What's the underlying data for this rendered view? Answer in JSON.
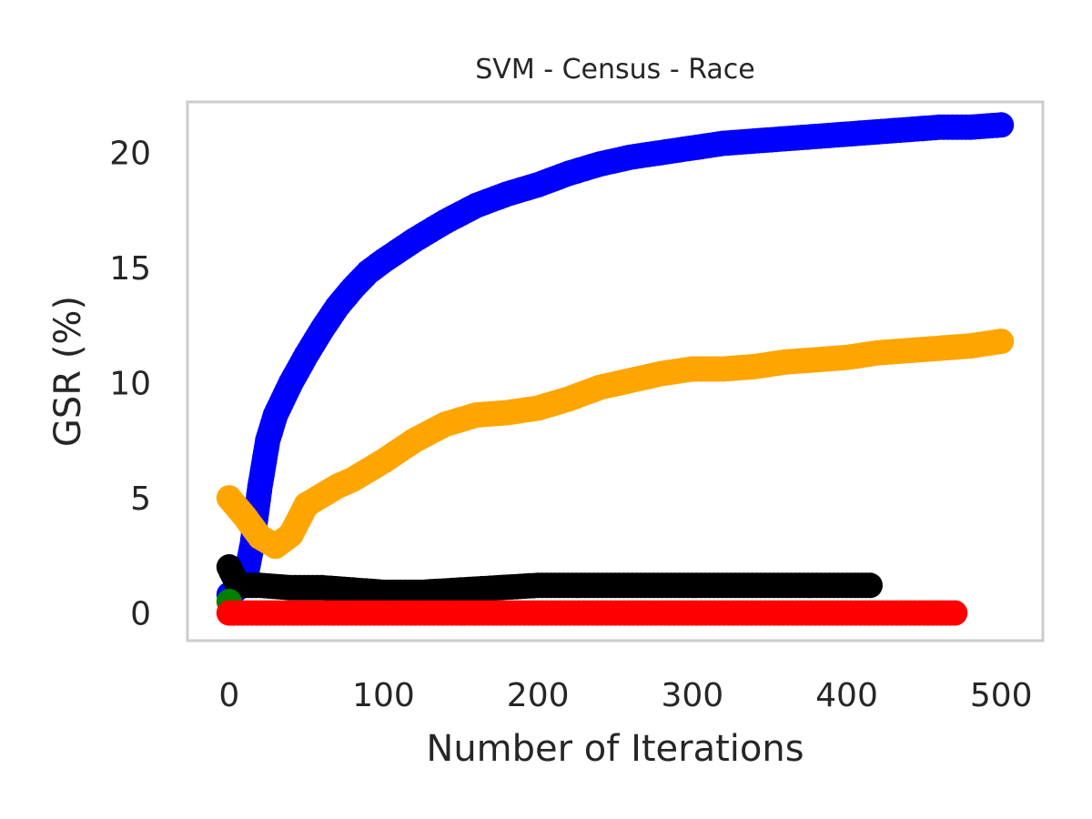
{
  "chart_data": {
    "type": "scatter",
    "title": "SVM - Census - Race",
    "xlabel": "Number of Iterations",
    "ylabel": "GSR (%)",
    "xlim": [
      -27,
      527
    ],
    "ylim": [
      -1.2,
      22.2
    ],
    "xticks": [
      0,
      100,
      200,
      300,
      400,
      500
    ],
    "yticks": [
      0,
      5,
      10,
      15,
      20
    ],
    "grid": false,
    "series": [
      {
        "color": "#0000ff",
        "x": [
          0,
          10,
          15,
          20,
          25,
          30,
          40,
          50,
          60,
          70,
          80,
          90,
          100,
          120,
          140,
          160,
          180,
          200,
          220,
          240,
          260,
          280,
          300,
          320,
          340,
          360,
          380,
          400,
          420,
          440,
          460,
          480,
          500
        ],
        "y": [
          0.8,
          1.3,
          3.0,
          5.5,
          7.5,
          8.6,
          10.0,
          11.2,
          12.3,
          13.3,
          14.1,
          14.8,
          15.3,
          16.2,
          17.0,
          17.7,
          18.2,
          18.6,
          19.1,
          19.5,
          19.8,
          20.0,
          20.2,
          20.4,
          20.5,
          20.6,
          20.7,
          20.8,
          20.9,
          21.0,
          21.1,
          21.1,
          21.2
        ]
      },
      {
        "color": "#ffa500",
        "x": [
          0,
          10,
          20,
          30,
          40,
          50,
          60,
          70,
          80,
          90,
          100,
          120,
          140,
          160,
          180,
          200,
          220,
          240,
          260,
          280,
          300,
          320,
          340,
          360,
          380,
          400,
          420,
          440,
          460,
          480,
          500
        ],
        "y": [
          5.0,
          4.2,
          3.3,
          2.9,
          3.4,
          4.7,
          5.1,
          5.5,
          5.8,
          6.2,
          6.6,
          7.5,
          8.2,
          8.6,
          8.7,
          8.9,
          9.3,
          9.8,
          10.1,
          10.4,
          10.6,
          10.6,
          10.7,
          10.9,
          11.0,
          11.1,
          11.3,
          11.4,
          11.5,
          11.6,
          11.8
        ]
      },
      {
        "color": "#000000",
        "x": [
          0,
          5,
          10,
          20,
          40,
          60,
          80,
          100,
          125,
          150,
          175,
          200,
          225,
          250,
          275,
          300,
          325,
          350,
          375,
          400,
          415
        ],
        "y": [
          2.0,
          1.3,
          1.2,
          1.2,
          1.1,
          1.1,
          1.0,
          0.9,
          0.9,
          1.0,
          1.1,
          1.2,
          1.2,
          1.2,
          1.2,
          1.2,
          1.2,
          1.2,
          1.2,
          1.2,
          1.2
        ]
      },
      {
        "color": "#008000",
        "x": [
          0
        ],
        "y": [
          0.5
        ]
      },
      {
        "color": "#ff0000",
        "x": [
          0,
          50,
          100,
          150,
          200,
          250,
          300,
          350,
          400,
          450,
          470
        ],
        "y": [
          0.0,
          0.0,
          0.0,
          0.0,
          0.0,
          0.0,
          0.0,
          0.0,
          0.0,
          0.0,
          0.0
        ]
      }
    ]
  }
}
